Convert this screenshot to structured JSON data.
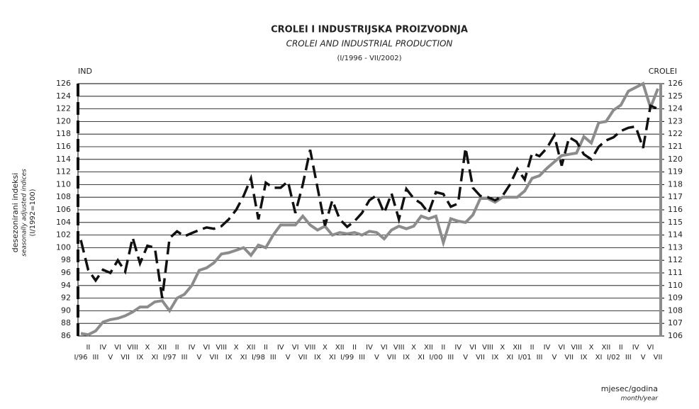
{
  "chart_data": {
    "type": "line",
    "title": "CROLEI I INDUSTRIJSKA PROIZVODNJA",
    "subtitle": "CROLEI AND INDUSTRIAL PRODUCTION",
    "period": "(I/1996 - VII/2002)",
    "y_axis_title": "IND",
    "y2_axis_title": "CROLEI",
    "ylabel": [
      "desezonirani indeksi",
      "seasonally adjusted indices",
      "(I/1992=100)"
    ],
    "xlabel": [
      "mjesec/godina",
      "month/year"
    ],
    "categories": [
      "I/96",
      "II",
      "III",
      "IV",
      "V",
      "VI",
      "VII",
      "VIII",
      "IX",
      "X",
      "XI",
      "XII",
      "I/97",
      "II",
      "III",
      "IV",
      "V",
      "VI",
      "VII",
      "VIII",
      "IX",
      "X",
      "XI",
      "XII",
      "I/98",
      "II",
      "III",
      "IV",
      "V",
      "VI",
      "VII",
      "VIII",
      "IX",
      "X",
      "XI",
      "XII",
      "I/99",
      "II",
      "III",
      "IV",
      "V",
      "VI",
      "VII",
      "VIII",
      "IX",
      "X",
      "XI",
      "XII",
      "I/00",
      "II",
      "III",
      "IV",
      "V",
      "VI",
      "VII",
      "VIII",
      "IX",
      "X",
      "XI",
      "XII",
      "I/01",
      "II",
      "III",
      "IV",
      "V",
      "VI",
      "VII",
      "VIII",
      "IX",
      "X",
      "XI",
      "XII",
      "I/02",
      "II",
      "III",
      "IV",
      "V",
      "VI",
      "VII"
    ],
    "series": [
      {
        "color": "#111111",
        "dashed": true,
        "axis": "y",
        "values": [
          101.2,
          96.5,
          94.8,
          96.5,
          96.0,
          98.0,
          96.2,
          101.6,
          97.5,
          100.3,
          100.0,
          92.0,
          101.5,
          102.6,
          101.8,
          102.3,
          102.8,
          103.2,
          103.0,
          103.4,
          104.5,
          106.0,
          108.2,
          111.0,
          104.5,
          110.3,
          109.5,
          109.5,
          110.5,
          105.5,
          110.0,
          115.5,
          109.5,
          103.5,
          107.5,
          104.5,
          103.3,
          104.2,
          105.5,
          107.5,
          108.3,
          105.5,
          108.6,
          104.5,
          109.3,
          107.8,
          107.0,
          105.5,
          108.8,
          108.5,
          106.5,
          107.0,
          115.8,
          109.5,
          108.2,
          108.0,
          107.5,
          108.2,
          110.0,
          112.5,
          110.8,
          115.0,
          114.5,
          115.8,
          117.8,
          113.0,
          117.5,
          116.8,
          114.8,
          114.0,
          116.0,
          117.0,
          117.5,
          118.5,
          119.0,
          119.2,
          115.8,
          122.5,
          122.0
        ]
      },
      {
        "color": "#8c8c8c",
        "dashed": false,
        "axis": "y2",
        "values": [
          106.2,
          106.1,
          106.4,
          107.1,
          107.3,
          107.4,
          107.6,
          107.9,
          108.3,
          108.3,
          108.7,
          108.8,
          108.0,
          109.0,
          109.3,
          110.0,
          111.2,
          111.4,
          111.8,
          112.5,
          112.6,
          112.8,
          113.0,
          112.4,
          113.2,
          113.0,
          114.0,
          114.8,
          114.8,
          114.8,
          115.5,
          114.8,
          114.4,
          114.7,
          114.0,
          114.2,
          114.1,
          114.2,
          114.0,
          114.3,
          114.2,
          113.7,
          114.4,
          114.7,
          114.5,
          114.7,
          115.5,
          115.3,
          115.5,
          113.4,
          115.3,
          115.1,
          115.0,
          115.6,
          116.9,
          116.9,
          116.6,
          117.0,
          117.0,
          117.0,
          117.5,
          118.5,
          118.7,
          119.3,
          119.8,
          120.3,
          120.4,
          120.5,
          121.8,
          121.3,
          122.9,
          123.0,
          123.9,
          124.3,
          125.4,
          125.7,
          126.0,
          124.1,
          125.6
        ]
      }
    ],
    "ylim": [
      86,
      126
    ],
    "yticks": [
      86,
      88,
      90,
      92,
      94,
      96,
      98,
      100,
      102,
      104,
      106,
      108,
      110,
      112,
      114,
      116,
      118,
      120,
      122,
      124,
      126
    ],
    "y2lim": [
      106,
      126
    ],
    "y2ticks": [
      106,
      107,
      108,
      109,
      110,
      111,
      112,
      113,
      114,
      115,
      116,
      117,
      118,
      119,
      120,
      121,
      122,
      123,
      124,
      125,
      126
    ],
    "grid": true
  }
}
